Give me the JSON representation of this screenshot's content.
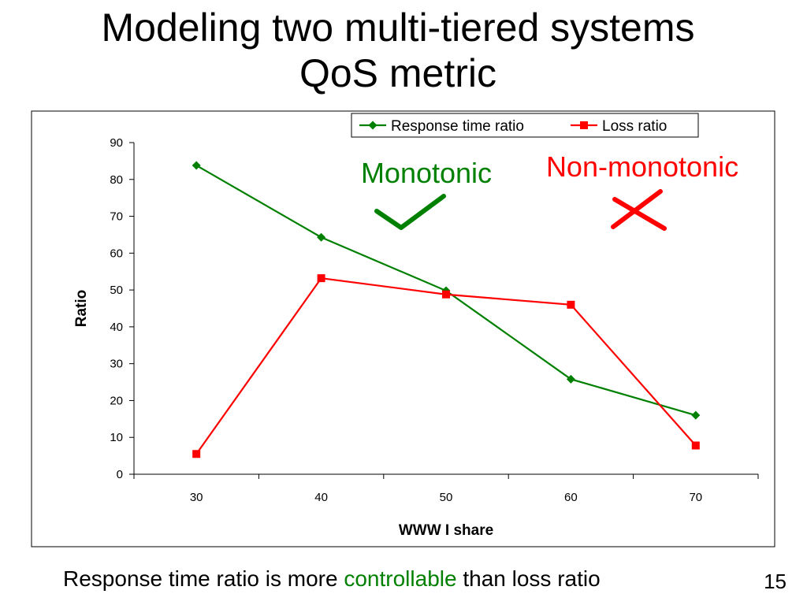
{
  "slide": {
    "title_line1": "Modeling two multi-tiered systems",
    "title_line2": "QoS metric",
    "caption_before": "Response time ratio is more ",
    "caption_highlight": "controllable",
    "caption_after": " than loss ratio",
    "page_number": "15",
    "highlight_color": "#008000"
  },
  "chart_data": {
    "type": "line",
    "x": [
      30,
      40,
      50,
      60,
      70
    ],
    "xlabel": "WWW I share",
    "ylabel": "Ratio",
    "ylim": [
      0,
      90
    ],
    "yticks": [
      0,
      10,
      20,
      30,
      40,
      50,
      60,
      70,
      80,
      90
    ],
    "grid": false,
    "legend": "top-right",
    "series": [
      {
        "name": "Response time ratio",
        "values": [
          83.8,
          64.3,
          49.8,
          25.8,
          16
        ],
        "color": "#008000",
        "marker": "diamond"
      },
      {
        "name": "Loss ratio",
        "values": [
          5.5,
          53.2,
          48.8,
          46,
          7.8
        ],
        "color": "#ff0000",
        "marker": "square"
      }
    ],
    "annotations": [
      {
        "text": "Monotonic",
        "color": "#008000",
        "symbol": "checkmark"
      },
      {
        "text": "Non-monotonic",
        "color": "#ff0000",
        "symbol": "cross"
      }
    ]
  }
}
